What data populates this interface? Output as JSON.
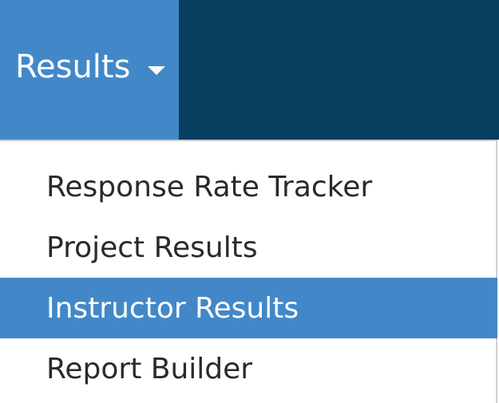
{
  "nav": {
    "results_label": "Results"
  },
  "menu": {
    "items": [
      {
        "label": "Response Rate Tracker"
      },
      {
        "label": "Project Results"
      },
      {
        "label": "Instructor Results",
        "active": true
      },
      {
        "label": "Report Builder"
      }
    ]
  },
  "colors": {
    "navbar_bg": "#083e5f",
    "accent": "#4288c8",
    "text": "#2a2a2a"
  }
}
